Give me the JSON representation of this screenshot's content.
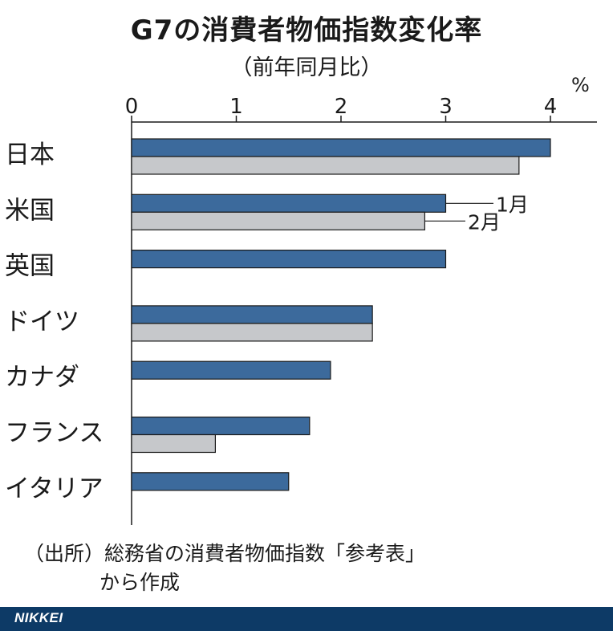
{
  "header": {
    "title": "G7の消費者物価指数変化率",
    "subtitle": "（前年同月比）",
    "unit": "%"
  },
  "colors": {
    "jan": "#3c6a9c",
    "feb": "#c6c8cb",
    "axis": "#1a1a1a"
  },
  "chart_data": {
    "type": "bar",
    "orientation": "horizontal",
    "title": "G7の消費者物価指数変化率",
    "subtitle": "（前年同月比）",
    "unit": "%",
    "categories": [
      "日本",
      "米国",
      "英国",
      "ドイツ",
      "カナダ",
      "フランス",
      "イタリア"
    ],
    "series": [
      {
        "name": "1月",
        "values": [
          4.0,
          3.0,
          3.0,
          2.3,
          1.9,
          1.7,
          1.5
        ]
      },
      {
        "name": "2月",
        "values": [
          3.7,
          2.8,
          null,
          2.3,
          null,
          0.8,
          null
        ]
      }
    ],
    "xlim": [
      0,
      4.4
    ],
    "ticks": [
      "0",
      "1",
      "2",
      "3",
      "4"
    ],
    "series_labels_position": "callout beside 米国 bars"
  },
  "source": {
    "line1": "（出所）総務省の消費者物価指数「参考表」",
    "line2": "から作成"
  },
  "footer": {
    "brand": "NIKKEI"
  }
}
